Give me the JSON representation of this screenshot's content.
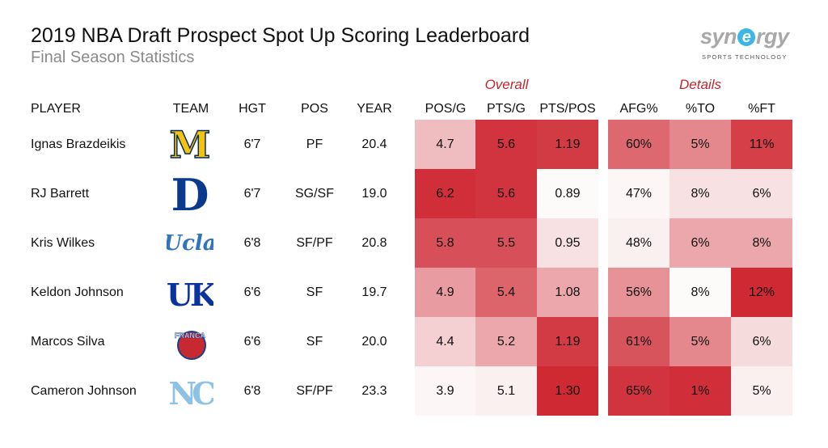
{
  "title": "2019 NBA Draft Prospect Spot Up Scoring Leaderboard",
  "subtitle": "Final Season Statistics",
  "brand": {
    "name_pre": "syn",
    "name_e": "e",
    "name_post": "rgy",
    "tagline": "SPORTS TECHNOLOGY"
  },
  "groups": {
    "overall": "Overall",
    "details": "Details"
  },
  "columns": {
    "player": "PLAYER",
    "team": "TEAM",
    "hgt": "HGT",
    "pos": "POS",
    "year": "YEAR",
    "pos_g": "POS/G",
    "pts_g": "PTS/G",
    "pts_pos": "PTS/POS",
    "afg": "AFG%",
    "to": "%TO",
    "ft": "%FT"
  },
  "team_logos": {
    "michigan": {
      "text": "M",
      "color": "#f2c30f",
      "stroke": "#0a2a5a"
    },
    "duke": {
      "text": "D",
      "color": "#0a3a8e"
    },
    "ucla": {
      "text": "Ucla",
      "color": "#2f74c0"
    },
    "kentucky": {
      "text": "UK",
      "color": "#0b33a0"
    },
    "franca": {
      "text": "FRANCA",
      "color": "#c62a30"
    },
    "unc": {
      "text": "NC",
      "color": "#8ec1e6"
    }
  },
  "rows": [
    {
      "player": "Ignas Brazdeikis",
      "team": "michigan",
      "hgt": "6'7",
      "pos": "PF",
      "year": "20.4",
      "pos_g": "4.7",
      "pts_g": "5.6",
      "pts_pos": "1.19",
      "afg": "60%",
      "to": "5%",
      "ft": "11%"
    },
    {
      "player": "RJ Barrett",
      "team": "duke",
      "hgt": "6'7",
      "pos": "SG/SF",
      "year": "19.0",
      "pos_g": "6.2",
      "pts_g": "5.6",
      "pts_pos": "0.89",
      "afg": "47%",
      "to": "8%",
      "ft": "6%"
    },
    {
      "player": "Kris Wilkes",
      "team": "ucla",
      "hgt": "6'8",
      "pos": "SF/PF",
      "year": "20.8",
      "pos_g": "5.8",
      "pts_g": "5.5",
      "pts_pos": "0.95",
      "afg": "48%",
      "to": "6%",
      "ft": "8%"
    },
    {
      "player": "Keldon Johnson",
      "team": "kentucky",
      "hgt": "6'6",
      "pos": "SF",
      "year": "19.7",
      "pos_g": "4.9",
      "pts_g": "5.4",
      "pts_pos": "1.08",
      "afg": "56%",
      "to": "8%",
      "ft": "12%"
    },
    {
      "player": "Marcos Silva",
      "team": "franca",
      "hgt": "6'6",
      "pos": "SF",
      "year": "20.0",
      "pos_g": "4.4",
      "pts_g": "5.2",
      "pts_pos": "1.19",
      "afg": "61%",
      "to": "5%",
      "ft": "6%"
    },
    {
      "player": "Cameron Johnson",
      "team": "unc",
      "hgt": "6'8",
      "pos": "SF/PF",
      "year": "23.3",
      "pos_g": "3.9",
      "pts_g": "5.1",
      "pts_pos": "1.30",
      "afg": "65%",
      "to": "1%",
      "ft": "5%"
    }
  ],
  "colors": {
    "low": "#fdfafa",
    "high": "#cf2a34",
    "accent": "#c0262d"
  },
  "chart_data": {
    "type": "table",
    "title": "2019 NBA Draft Prospect Spot Up Scoring Leaderboard",
    "subtitle": "Final Season Statistics",
    "heat_columns": [
      "POS/G",
      "PTS/G",
      "PTS/POS",
      "AFG%",
      "%TO",
      "%FT"
    ],
    "heat_levels": [
      [
        0.3,
        0.95,
        0.92,
        0.7,
        0.55,
        0.9
      ],
      [
        0.98,
        0.95,
        0.0,
        0.02,
        0.12,
        0.12
      ],
      [
        0.82,
        0.82,
        0.12,
        0.05,
        0.4,
        0.4
      ],
      [
        0.45,
        0.72,
        0.4,
        0.5,
        0.0,
        1.0
      ],
      [
        0.2,
        0.4,
        0.92,
        0.8,
        0.55,
        0.15
      ],
      [
        0.02,
        0.05,
        1.0,
        0.95,
        0.98,
        0.05
      ]
    ]
  }
}
